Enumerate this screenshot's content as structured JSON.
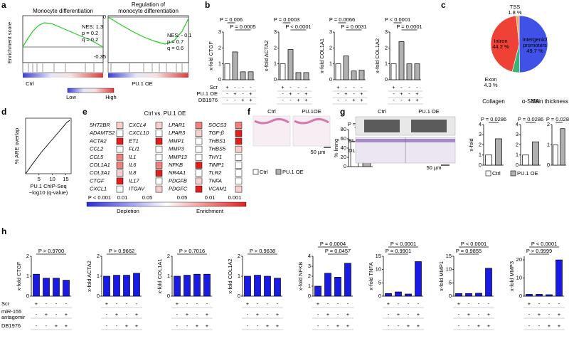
{
  "panel_labels": [
    "a",
    "b",
    "c",
    "d",
    "e",
    "f",
    "g",
    "h"
  ],
  "a": {
    "plots": [
      {
        "title_lines": [
          "Monocyte differentiation"
        ],
        "stats": [
          "NES: 1.3",
          "p = 0.2",
          "q = 0.2"
        ]
      },
      {
        "title_lines": [
          "Regulation of",
          "monocyte differentiation"
        ],
        "stats": [
          "NES: - 0.1",
          "p = 0.7",
          "q = 0.6"
        ],
        "yticks": [
          "0",
          "-0.35"
        ]
      }
    ],
    "y_label": "Enrichment score",
    "phenotypes": [
      "Ctrl",
      "PU.1 OE"
    ],
    "scale": [
      "Low",
      "High"
    ]
  },
  "b": {
    "bar_colors": [
      "#ffffff",
      "#b0b0b0",
      "#b0b0b0",
      "#b0b0b0"
    ],
    "charts": [
      {
        "ylabel": "x-fold CTGF",
        "ylim": [
          0,
          3
        ],
        "yticks": [
          0,
          1,
          2,
          3
        ],
        "values": [
          1.0,
          1.75,
          0.5,
          0.5
        ],
        "sig": [
          {
            "label": "P = 0.006",
            "bars": [
              0,
              1
            ]
          },
          {
            "label": "P = 0.0005",
            "bars": [
              1,
              3
            ]
          }
        ]
      },
      {
        "ylabel": "x-fold ACTA2",
        "ylim": [
          0,
          3
        ],
        "yticks": [
          0,
          1,
          2,
          3
        ],
        "values": [
          1.0,
          1.9,
          0.45,
          0.45
        ],
        "sig": [
          {
            "label": "P = 0.0003",
            "bars": [
              0,
              1
            ]
          },
          {
            "label": "P < 0.0001",
            "bars": [
              1,
              3
            ]
          }
        ]
      },
      {
        "ylabel": "x-fold COL1A1",
        "ylim": [
          0,
          3
        ],
        "yticks": [
          0,
          1,
          2,
          3
        ],
        "values": [
          1.0,
          1.5,
          0.55,
          0.6
        ],
        "sig": [
          {
            "label": "P = 0.0066",
            "bars": [
              0,
              1
            ]
          },
          {
            "label": "P = 0.0031",
            "bars": [
              1,
              3
            ]
          }
        ]
      },
      {
        "ylabel": "x-fold COL1A2",
        "ylim": [
          0,
          3
        ],
        "yticks": [
          0,
          1,
          2,
          3
        ],
        "values": [
          1.0,
          2.4,
          1.0,
          1.0
        ],
        "sig": [
          {
            "label": "P < 0.0001",
            "bars": [
              0,
              1
            ]
          },
          {
            "label": "P = 0.0001",
            "bars": [
              1,
              3
            ]
          }
        ]
      }
    ],
    "treatments": [
      {
        "label_lines": [
          "Scr"
        ],
        "signs": [
          "+",
          "-",
          "-",
          "-"
        ]
      },
      {
        "label_lines": [
          "PU.1 OE"
        ],
        "signs": [
          "-",
          "+",
          "-",
          "+"
        ]
      },
      {
        "label_lines": [
          "DB1976"
        ],
        "signs": [
          "-",
          "-",
          "+",
          "+"
        ]
      }
    ]
  },
  "c": {
    "slices": [
      {
        "name_lines": [
          "Intergenic/",
          "promoters"
        ],
        "value": 49.7,
        "value_label": "49.7 %",
        "color": "#3f51e6"
      },
      {
        "name_lines": [
          "Exon"
        ],
        "value": 4.3,
        "value_label": "4.3 %",
        "color": "#3cb371"
      },
      {
        "name_lines": [
          "Intron"
        ],
        "value": 44.2,
        "value_label": "44.2 %",
        "color": "#ef4136"
      },
      {
        "name_lines": [
          "TSS"
        ],
        "value": 1.8,
        "value_label": "1.8 %",
        "color": "#f7a35c"
      }
    ]
  },
  "d": {
    "y_label": "% ARE overlap",
    "x_label_lines": [
      "PU.1 ChIP-Seq",
      "−log10 (q-value)"
    ],
    "xlim": [
      0,
      17
    ],
    "xticks": [
      5,
      10,
      15
    ]
  },
  "e": {
    "title": "Ctrl vs. PU.1 OE",
    "level_colors": [
      "#ffffff",
      "#f8d0d0",
      "#ef8080",
      "#e02020"
    ],
    "columns": [
      [
        {
          "gene": "5HT2BR",
          "level": 1
        },
        {
          "gene": "ADAMTS2",
          "level": 0
        },
        {
          "gene": "ACTA2",
          "level": 3
        },
        {
          "gene": "CCL2",
          "level": 0
        },
        {
          "gene": "CCL5",
          "level": 2
        },
        {
          "gene": "COL1A1",
          "level": 2
        },
        {
          "gene": "COL3A1",
          "level": 1
        },
        {
          "gene": "CTGF",
          "level": 3
        },
        {
          "gene": "CXCL1",
          "level": 0
        }
      ],
      [
        {
          "gene": "CXCL4",
          "level": 1
        },
        {
          "gene": "CXCL10",
          "level": 0
        },
        {
          "gene": "ET1",
          "level": 3
        },
        {
          "gene": "FLI1",
          "level": 0
        },
        {
          "gene": "IL1",
          "level": 0
        },
        {
          "gene": "IL6",
          "level": 2
        },
        {
          "gene": "IL8",
          "level": 3
        },
        {
          "gene": "IL17",
          "level": 0
        },
        {
          "gene": "ITGAV",
          "level": 1
        }
      ],
      [
        {
          "gene": "LPAR1",
          "level": 2
        },
        {
          "gene": "LPAR3",
          "level": 1
        },
        {
          "gene": "MMP1",
          "level": 0
        },
        {
          "gene": "MMP3",
          "level": 0
        },
        {
          "gene": "MMP13",
          "level": 0
        },
        {
          "gene": "NFKB",
          "level": 3
        },
        {
          "gene": "NR4A1",
          "level": 0
        },
        {
          "gene": "PDGFB",
          "level": 1
        },
        {
          "gene": "PDGFC",
          "level": 3
        }
      ],
      [
        {
          "gene": "SOCS3",
          "level": 2
        },
        {
          "gene": "TGF-β",
          "level": 3
        },
        {
          "gene": "THBS1",
          "level": 3
        },
        {
          "gene": "THBS5",
          "level": 1
        },
        {
          "gene": "THY1",
          "level": 0
        },
        {
          "gene": "TIMP1",
          "level": 0
        },
        {
          "gene": "TLR2",
          "level": 0
        },
        {
          "gene": "TNFA",
          "level": 0
        },
        {
          "gene": "VCAM1",
          "level": 1
        }
      ]
    ],
    "scale_labels": [
      "P < 0.001",
      "0.01",
      "0.05",
      "0.05",
      "0.01",
      "0.001"
    ],
    "scale_ends": [
      "Depletion",
      "Enrichment"
    ]
  },
  "f": {
    "images": [
      "Ctrl",
      "PU.1OE"
    ],
    "scale_bar": "50 µm",
    "legend": [
      "Ctrl",
      "PU.1 OE"
    ],
    "bar_colors": [
      "#ffffff",
      "#b0b0b0"
    ],
    "chart": {
      "ylabel": "% lining",
      "ylim": [
        0,
        80
      ],
      "yticks": [
        0,
        20,
        40,
        60,
        80
      ],
      "values": [
        55,
        10
      ],
      "sig": [
        {
          "label": "P = 0.0002",
          "bars": [
            0,
            1
          ]
        }
      ]
    }
  },
  "g": {
    "images": [
      "Ctrl",
      "PU.1 OE"
    ],
    "layers": [
      "EL",
      "DL"
    ],
    "scale_bar": "50 µm",
    "legend": [
      "Ctrl",
      "PU.1 OE"
    ],
    "bar_colors": [
      "#ffffff",
      "#b0b0b0"
    ],
    "charts": [
      {
        "title": "Collagen",
        "ylabel": "x-fold",
        "ylim": [
          0,
          4
        ],
        "yticks": [
          0,
          1,
          2,
          3,
          4
        ],
        "values": [
          1.0,
          2.6
        ],
        "sig": [
          {
            "label": "P = 0.0286",
            "bars": [
              0,
              1
            ]
          }
        ]
      },
      {
        "title": "α-SMA",
        "ylim": [
          0,
          4
        ],
        "yticks": [
          0,
          1,
          2,
          3,
          4
        ],
        "values": [
          1.0,
          2.3
        ],
        "sig": [
          {
            "label": "P = 0.0286",
            "bars": [
              0,
              1
            ]
          }
        ]
      },
      {
        "title": "Skin thickness",
        "ylim": [
          0,
          2
        ],
        "yticks": [
          0,
          1,
          2
        ],
        "values": [
          1.0,
          1.8
        ],
        "sig": [
          {
            "label": "P = 0.0286",
            "bars": [
              0,
              1
            ]
          }
        ]
      }
    ]
  },
  "h": {
    "bar_color": "#1a1ae6",
    "charts": [
      {
        "ylabel": "x-fold CTGF",
        "ylim": [
          0,
          2
        ],
        "yticks": [
          0,
          1,
          2
        ],
        "values": [
          1.1,
          0.9,
          0.9,
          0.8
        ],
        "sig": [
          {
            "label": "P > 0.9700",
            "bars": [
              0,
              3
            ]
          }
        ]
      },
      {
        "ylabel": "x-fold ACTA2",
        "ylim": [
          0,
          2
        ],
        "yticks": [
          0,
          1,
          2
        ],
        "values": [
          1.0,
          1.05,
          1.05,
          1.15
        ],
        "sig": [
          {
            "label": "P > 0.9662",
            "bars": [
              0,
              3
            ]
          }
        ]
      },
      {
        "ylabel": "x-fold COL1A1",
        "ylim": [
          0,
          2
        ],
        "yticks": [
          0,
          1,
          2
        ],
        "values": [
          1.0,
          1.05,
          1.1,
          1.1
        ],
        "sig": [
          {
            "label": "P > 0.7016",
            "bars": [
              0,
              3
            ]
          }
        ]
      },
      {
        "ylabel": "x-fold COL1A2",
        "ylim": [
          0,
          2
        ],
        "yticks": [
          0,
          1,
          2
        ],
        "values": [
          1.0,
          1.05,
          1.0,
          0.9
        ],
        "sig": [
          {
            "label": "P > 0.9638",
            "bars": [
              0,
              3
            ]
          }
        ]
      },
      {
        "ylabel": "x-fold NFKB",
        "ylim": [
          0,
          4
        ],
        "yticks": [
          0,
          1,
          2,
          3,
          4
        ],
        "values": [
          1.0,
          2.3,
          1.9,
          3.3
        ],
        "sig": [
          {
            "label": "P = 0.0004",
            "bars": [
              0,
              3
            ]
          },
          {
            "label": "P = 0.0457",
            "bars": [
              1,
              3
            ]
          }
        ]
      },
      {
        "ylabel": "x-fold TNFA",
        "ylim": [
          0,
          15
        ],
        "yticks": [
          0,
          5,
          10,
          15
        ],
        "values": [
          1.0,
          1.6,
          0.8,
          13
        ],
        "sig": [
          {
            "label": "P < 0.0001",
            "bars": [
              0,
              3
            ]
          },
          {
            "label": "P = 0.9901",
            "bars": [
              0,
              2
            ]
          }
        ]
      },
      {
        "ylabel": "x-fold MMP1",
        "ylim": [
          0,
          15
        ],
        "yticks": [
          0,
          5,
          10,
          15
        ],
        "values": [
          1.0,
          1.0,
          1.1,
          10.5
        ],
        "sig": [
          {
            "label": "P < 0.0001",
            "bars": [
              0,
              3
            ]
          },
          {
            "label": "P = 0.9855",
            "bars": [
              0,
              2
            ]
          }
        ]
      },
      {
        "ylabel": "x-fold MMP3",
        "ylim": [
          0,
          22
        ],
        "yticks": [
          0,
          10,
          20
        ],
        "values": [
          1.0,
          1.0,
          0.8,
          20
        ],
        "sig": [
          {
            "label": "P < 0.0001",
            "bars": [
              0,
              3
            ]
          },
          {
            "label": "P > 0.9999",
            "bars": [
              0,
              2
            ]
          }
        ]
      }
    ],
    "treatments": [
      {
        "label_lines": [
          "Scr"
        ],
        "signs": [
          "+",
          "-",
          "-",
          "-"
        ]
      },
      {
        "label_lines": [
          "miR-155",
          "antagomir"
        ],
        "signs": [
          "-",
          "+",
          "-",
          "+"
        ]
      },
      {
        "label_lines": [
          "DB1976"
        ],
        "signs": [
          "-",
          "-",
          "+",
          "+"
        ]
      }
    ]
  }
}
